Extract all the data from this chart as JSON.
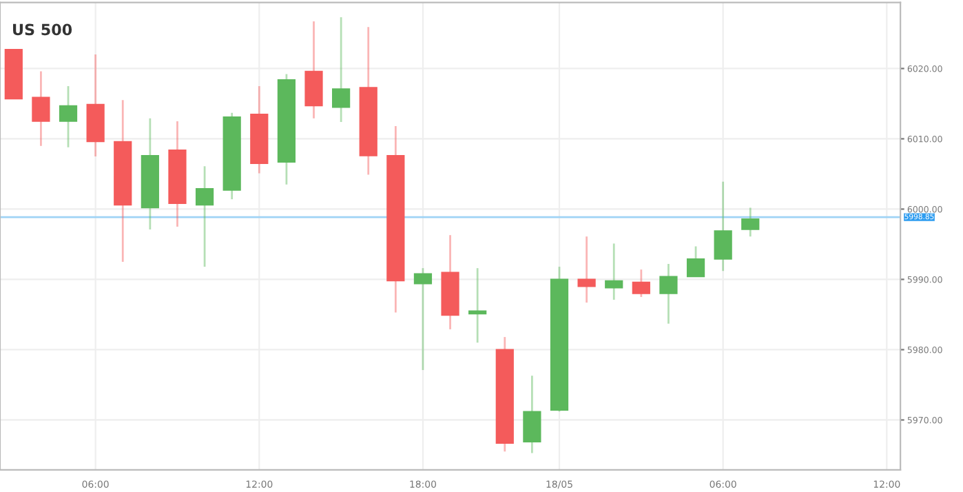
{
  "chart_data": {
    "type": "candlestick",
    "title": "US 500",
    "categories": [
      null,
      null,
      null,
      "06:00",
      null,
      null,
      null,
      null,
      null,
      "12:00",
      null,
      null,
      null,
      null,
      null,
      "18:00",
      null,
      null,
      null,
      null,
      "18/05",
      null,
      null,
      null,
      null,
      null,
      "06:00",
      null,
      null,
      null,
      null,
      null,
      "12:00"
    ],
    "ohlc": [
      [
        6022.7,
        6022.7,
        6015.7,
        6015.7
      ],
      [
        6015.9,
        6019.6,
        6009.0,
        6012.5
      ],
      [
        6012.5,
        6017.5,
        6008.8,
        6014.7
      ],
      [
        6014.9,
        6022.0,
        6007.5,
        6009.6
      ],
      [
        6009.6,
        6015.5,
        5992.5,
        6000.6
      ],
      [
        6000.2,
        6012.9,
        5997.1,
        6007.6
      ],
      [
        6008.4,
        6012.5,
        5997.5,
        6000.8
      ],
      [
        6000.6,
        6006.1,
        5991.8,
        6002.9
      ],
      [
        6002.7,
        6013.7,
        6001.4,
        6013.1
      ],
      [
        6013.5,
        6017.5,
        6005.1,
        6006.5
      ],
      [
        6006.7,
        6019.2,
        6003.5,
        6018.4
      ],
      [
        6019.6,
        6026.7,
        6012.9,
        6014.7
      ],
      [
        6014.5,
        6027.3,
        6012.4,
        6017.1
      ],
      [
        6017.3,
        6025.9,
        6004.9,
        6007.6
      ],
      [
        6007.6,
        6011.8,
        5985.3,
        5989.8
      ],
      [
        5989.4,
        5991.6,
        5977.1,
        5990.8
      ],
      [
        5991.0,
        5996.3,
        5982.9,
        5984.9
      ],
      [
        5985.1,
        5991.6,
        5981.0,
        5985.5
      ],
      [
        5980.0,
        5981.8,
        5965.5,
        5966.7
      ],
      [
        5966.9,
        5976.3,
        5965.3,
        5971.2
      ],
      [
        5971.4,
        5991.8,
        5971.2,
        5990.0
      ],
      [
        5990.0,
        5996.1,
        5986.7,
        5989.0
      ],
      [
        5988.8,
        5995.1,
        5987.1,
        5989.8
      ],
      [
        5989.6,
        5991.4,
        5987.5,
        5988.0
      ],
      [
        5988.0,
        5992.2,
        5983.7,
        5990.4
      ],
      [
        5990.4,
        5994.7,
        5990.4,
        5992.9
      ],
      [
        5992.9,
        6003.9,
        5991.2,
        5996.9
      ],
      [
        5997.1,
        6000.2,
        5996.1,
        5998.6
      ],
      null,
      null,
      null,
      null,
      null
    ],
    "colors": [
      "#f45b5b",
      "#f45b5b",
      "#5cb85c",
      "#f45b5b",
      "#f45b5b",
      "#5cb85c",
      "#f45b5b",
      "#5cb85c",
      "#5cb85c",
      "#f45b5b",
      "#5cb85c",
      "#f45b5b",
      "#5cb85c",
      "#f45b5b",
      "#f45b5b",
      "#5cb85c",
      "#f45b5b",
      "#5cb85c",
      "#f45b5b",
      "#5cb85c",
      "#5cb85c",
      "#f45b5b",
      "#5cb85c",
      "#f45b5b",
      "#5cb85c",
      "#5cb85c",
      "#5cb85c",
      "#5cb85c",
      null,
      null,
      null,
      null,
      null
    ],
    "ylim": [
      5962.9,
      6029.4
    ],
    "yticks": [
      {
        "value": 5970,
        "label": "5970.00"
      },
      {
        "value": 5980,
        "label": "5980.00"
      },
      {
        "value": 5990,
        "label": "5990.00"
      },
      {
        "value": 6000,
        "label": "6000.00"
      },
      {
        "value": 6010,
        "label": "6010.00"
      },
      {
        "value": 6020,
        "label": "6020.00"
      }
    ],
    "ref_lines": [
      {
        "axis": "y",
        "value": 5998.85,
        "label": "5998.85",
        "color": "#9fd3f5"
      }
    ],
    "grid": true
  }
}
